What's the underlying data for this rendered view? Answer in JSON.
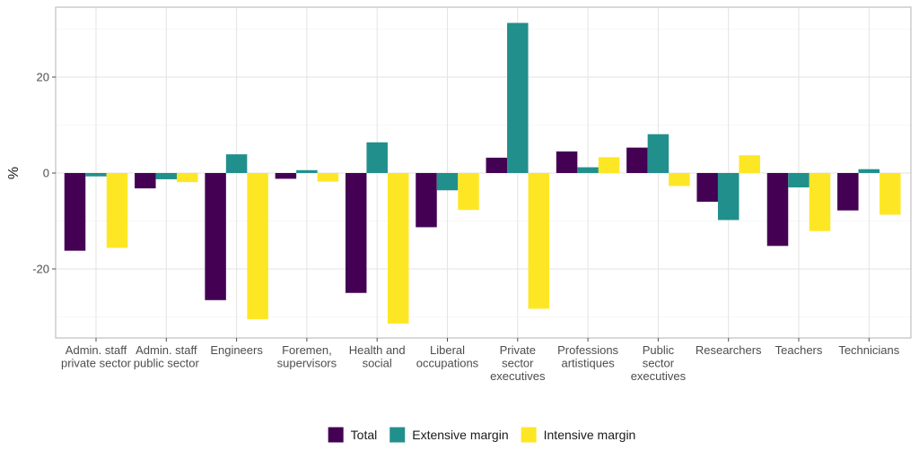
{
  "chart_data": {
    "type": "bar",
    "title": "",
    "xlabel": "",
    "ylabel": "%",
    "ylim": [
      -34.5,
      34.5
    ],
    "yticks": [
      -20,
      0,
      20
    ],
    "grid": true,
    "legend_position": "bottom",
    "categories": [
      "Admin. staff\nprivate sector",
      "Admin. staff\npublic sector",
      "Engineers",
      "Foremen,\nsupervisors",
      "Health and\nsocial",
      "Liberal\noccupations",
      "Private\nsector\nexecutives",
      "Professions\nartistiques",
      "Public\nsector\nexecutives",
      "Researchers",
      "Teachers",
      "Technicians"
    ],
    "series": [
      {
        "name": "Total",
        "color": "#440154",
        "values": [
          -16.2,
          -3.2,
          -26.5,
          -1.2,
          -25.0,
          -11.3,
          3.2,
          4.5,
          5.3,
          -6.0,
          -15.2,
          -7.8
        ]
      },
      {
        "name": "Extensive margin",
        "color": "#21908C",
        "values": [
          -0.7,
          -1.3,
          3.9,
          0.6,
          6.4,
          -3.6,
          31.3,
          1.2,
          8.1,
          -9.8,
          -3.0,
          0.8
        ]
      },
      {
        "name": "Intensive margin",
        "color": "#FDE725",
        "values": [
          -15.6,
          -1.9,
          -30.5,
          -1.8,
          -31.4,
          -7.7,
          -28.3,
          3.3,
          -2.7,
          3.7,
          -12.1,
          -8.7
        ]
      }
    ]
  }
}
